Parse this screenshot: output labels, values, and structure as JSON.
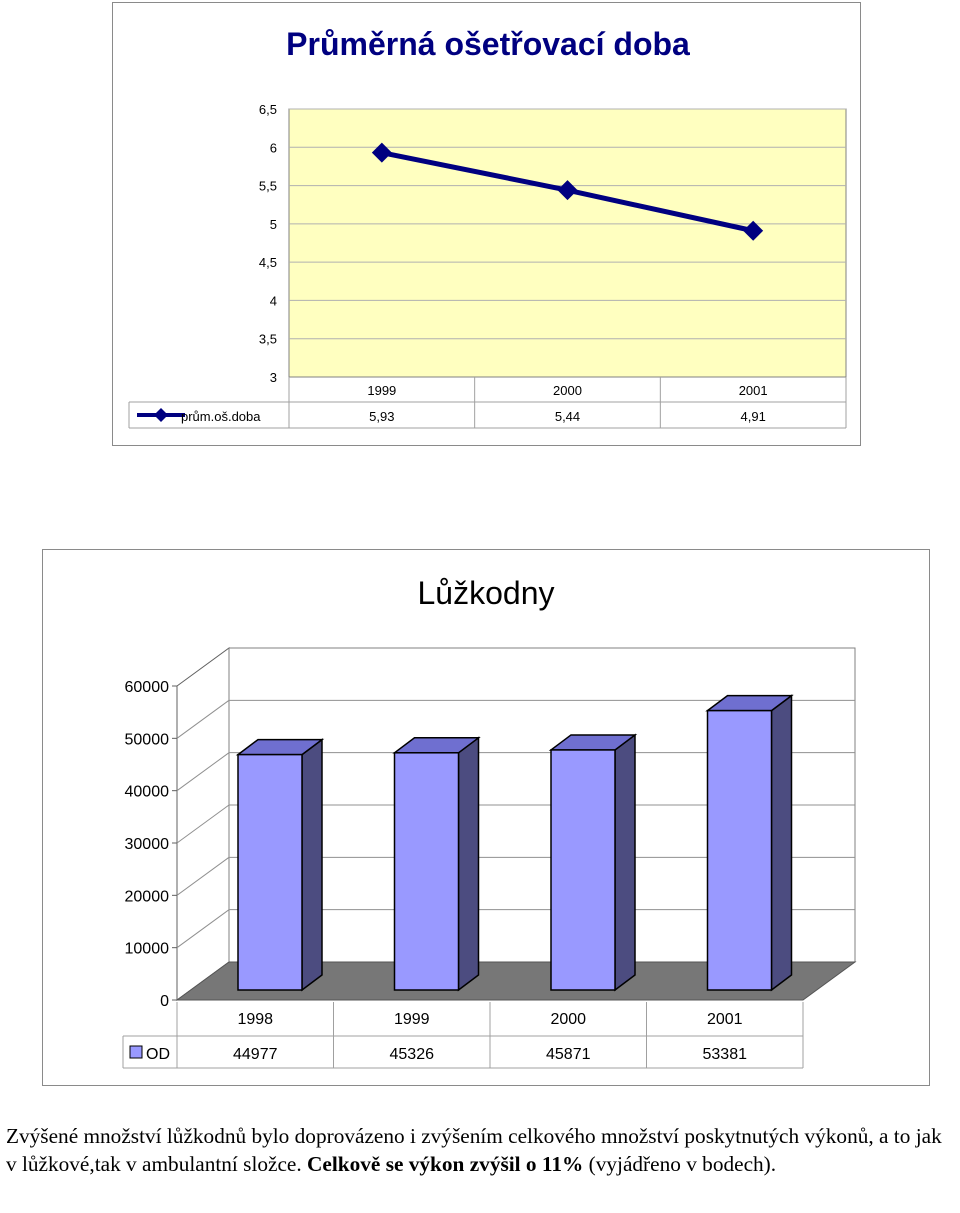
{
  "colors": {
    "line_series": "#000080",
    "plot_bg_1": "#ffffc0",
    "title_1": "#000080",
    "bar_front": "#9999ff",
    "bar_top": "#6f6fd0",
    "bar_side": "#4c4c80",
    "floor": "#777777",
    "grid": "#b0b0b0"
  },
  "chart_data": [
    {
      "type": "line",
      "title": "Průměrná ošetřovací doba",
      "categories": [
        "1999",
        "2000",
        "2001"
      ],
      "series": [
        {
          "name": "prům.oš.doba",
          "values": [
            5.93,
            5.44,
            4.91
          ],
          "value_labels": [
            "5,93",
            "5,44",
            "4,91"
          ]
        }
      ],
      "y_ticks": [
        "3",
        "3,5",
        "4",
        "4,5",
        "5",
        "5,5",
        "6",
        "6,5"
      ],
      "ylim": [
        3,
        6.5
      ],
      "grid": true,
      "legend": "data-table-left",
      "marker": "diamond"
    },
    {
      "type": "bar",
      "title": "Lůžkodny",
      "categories": [
        "1998",
        "1999",
        "2000",
        "2001"
      ],
      "series": [
        {
          "name": "OD",
          "values": [
            44977,
            45326,
            45871,
            53381
          ]
        }
      ],
      "y_ticks": [
        "0",
        "10000",
        "20000",
        "30000",
        "40000",
        "50000",
        "60000"
      ],
      "ylim": [
        0,
        60000
      ],
      "grid": true,
      "legend": "data-table-left",
      "style": "3d-column"
    }
  ],
  "note": {
    "text_normal": "Zvýšené množství  lůžkodnů bylo doprovázeno i zvýšením celkového množství poskytnutých výkonů, a to jak v lůžkové,tak v ambulantní složce. ",
    "text_bold": "Celkově se výkon zvýšil o 11%",
    "text_end": " (vyjádřeno v bodech)."
  }
}
